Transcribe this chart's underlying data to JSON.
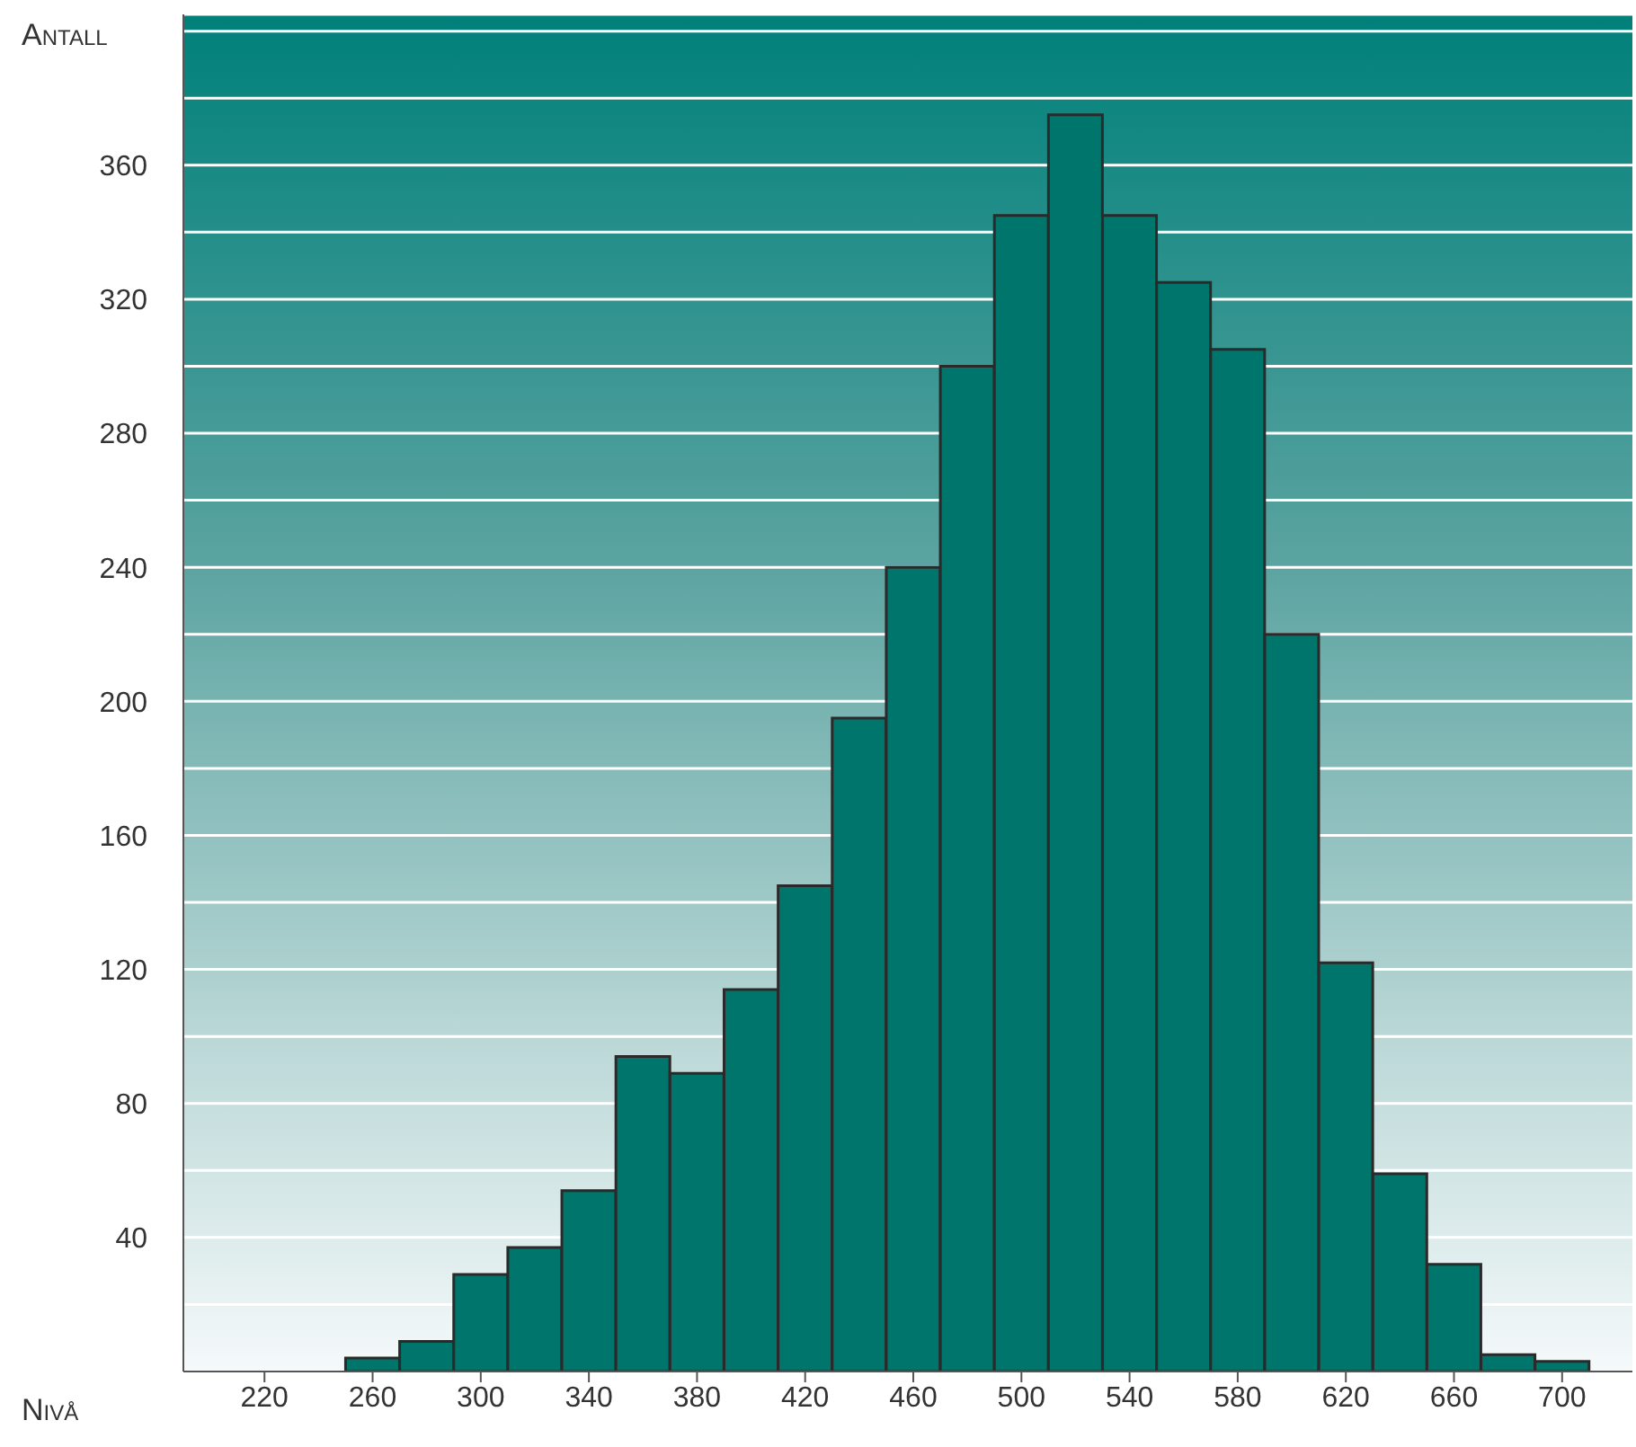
{
  "chart_data": {
    "type": "histogram",
    "xlabel": "Nivå",
    "ylabel": "Antall",
    "bins": [
      250,
      270,
      290,
      310,
      330,
      350,
      370,
      390,
      410,
      430,
      450,
      470,
      490,
      510,
      530,
      550,
      570,
      590,
      610,
      630,
      650,
      670,
      690,
      710
    ],
    "values": [
      4,
      9,
      29,
      37,
      54,
      94,
      89,
      114,
      145,
      195,
      240,
      300,
      345,
      375,
      345,
      325,
      305,
      220,
      122,
      59,
      32,
      5,
      3
    ],
    "color": "#00756b",
    "xlim": [
      190,
      726
    ],
    "xticks": [
      220,
      260,
      300,
      340,
      380,
      420,
      460,
      500,
      540,
      580,
      620,
      660,
      700
    ],
    "ylim": [
      0,
      405
    ],
    "yticks": [
      {
        "value": 20,
        "label": null
      },
      40,
      {
        "value": 60,
        "label": null
      },
      80,
      {
        "value": 100,
        "label": null
      },
      120,
      {
        "value": 140,
        "label": null
      },
      160,
      {
        "value": 180,
        "label": null
      },
      200,
      {
        "value": 220,
        "label": null
      },
      240,
      {
        "value": 260,
        "label": null
      },
      280,
      {
        "value": 300,
        "label": null
      },
      320,
      {
        "value": 340,
        "label": null
      },
      360,
      {
        "value": 380,
        "label": null
      },
      {
        "value": 400,
        "label": null
      }
    ],
    "grid": "y"
  }
}
